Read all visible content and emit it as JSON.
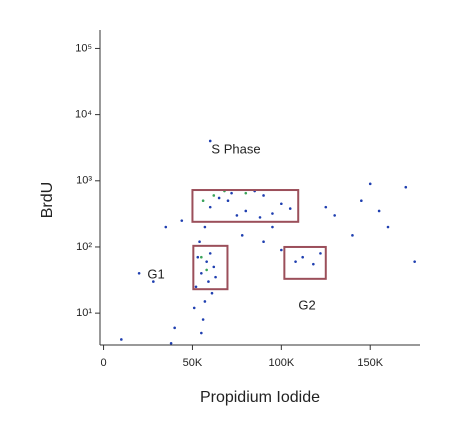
{
  "chart_data": {
    "type": "scatter",
    "xlabel": "Propidium Iodide",
    "ylabel": "BrdU",
    "xlim": [
      -2000,
      178000
    ],
    "ylim": [
      3.3,
      190000
    ],
    "yscale": "log",
    "xticks": [
      {
        "value": 0,
        "label": "0"
      },
      {
        "value": 50000,
        "label": "50K"
      },
      {
        "value": 100000,
        "label": "100K"
      },
      {
        "value": 150000,
        "label": "150K"
      }
    ],
    "yticks": [
      {
        "value": 10,
        "label": "10¹"
      },
      {
        "value": 100,
        "label": "10²"
      },
      {
        "value": 1000,
        "label": "10³"
      },
      {
        "value": 10000,
        "label": "10⁴"
      },
      {
        "value": 100000,
        "label": "10⁵"
      }
    ],
    "series": [
      {
        "color": "#1f3fb0",
        "x": [
          55000,
          58000,
          52000,
          60000,
          57000,
          54000,
          62000,
          56000,
          59000,
          53000,
          61000,
          55000,
          57000,
          63000,
          51000,
          60000,
          70000,
          80000,
          90000,
          100000,
          75000,
          85000,
          65000,
          95000,
          105000,
          72000,
          88000,
          78000,
          90000,
          100000,
          112000,
          118000,
          95000,
          108000,
          122000,
          130000,
          145000,
          160000,
          170000,
          150000,
          140000,
          175000,
          20000,
          35000,
          28000,
          10000,
          40000,
          44000,
          38000,
          60000,
          125000,
          155000
        ],
        "y": [
          40,
          60,
          25,
          80,
          15,
          120,
          50,
          8,
          30,
          70,
          20,
          5,
          200,
          35,
          12,
          400,
          500,
          350,
          600,
          450,
          300,
          700,
          550,
          320,
          380,
          650,
          280,
          150,
          120,
          90,
          70,
          55,
          200,
          60,
          80,
          300,
          500,
          200,
          800,
          900,
          150,
          60,
          40,
          200,
          30,
          4,
          6,
          250,
          3.5,
          4000,
          400,
          350
        ]
      },
      {
        "color": "#3aa35a",
        "x": [
          56000,
          58000,
          62000,
          55000,
          68000,
          80000
        ],
        "y": [
          500,
          45,
          600,
          70,
          700,
          650
        ]
      }
    ],
    "gates": [
      {
        "label": "S Phase",
        "color": "#9b4f5a",
        "x": [
          50000,
          109500
        ],
        "y": [
          240,
          725
        ]
      },
      {
        "label": "G1",
        "color": "#9b4f5a",
        "x": [
          50500,
          69700
        ],
        "y": [
          23,
          104
        ]
      },
      {
        "label": "G2",
        "color": "#9b4f5a",
        "x": [
          101700,
          125000
        ],
        "y": [
          33,
          100
        ]
      }
    ]
  }
}
